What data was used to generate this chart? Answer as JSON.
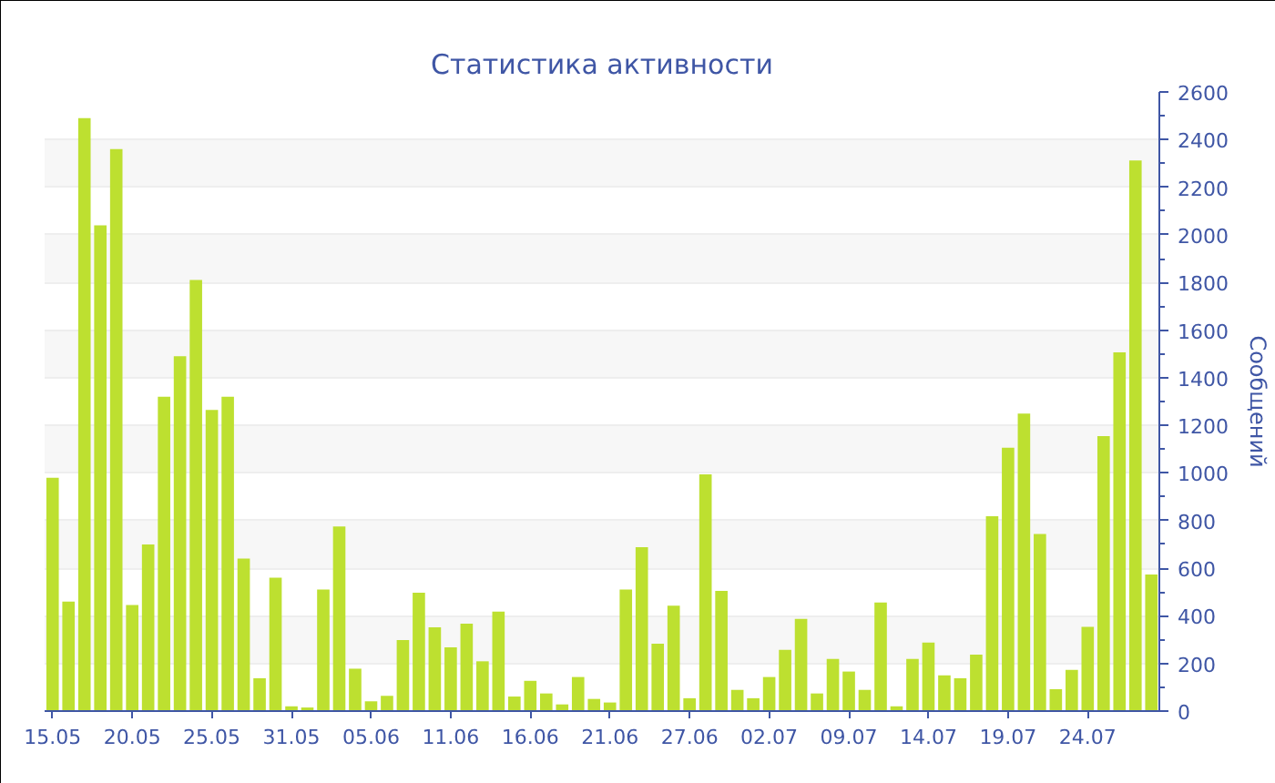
{
  "chart_data": {
    "type": "bar",
    "title": "Статистика активности",
    "y2label": "Сообщений",
    "categories": [
      "15.05",
      null,
      null,
      null,
      null,
      "20.05",
      null,
      null,
      null,
      null,
      "25.05",
      null,
      null,
      null,
      null,
      "31.05",
      null,
      null,
      null,
      null,
      "05.06",
      null,
      null,
      null,
      null,
      "11.06",
      null,
      null,
      null,
      null,
      "16.06",
      null,
      null,
      null,
      null,
      "21.06",
      null,
      null,
      null,
      null,
      "27.06",
      null,
      null,
      null,
      null,
      "02.07",
      null,
      null,
      null,
      null,
      "09.07",
      null,
      null,
      null,
      null,
      "14.07",
      null,
      null,
      null,
      null,
      "19.07",
      null,
      null,
      null,
      null,
      "24.07",
      null,
      null,
      null,
      null
    ],
    "series": [
      {
        "color": "#bde030",
        "axis": "y2",
        "values": [
          980,
          460,
          2490,
          2040,
          2360,
          445,
          700,
          1320,
          1490,
          1810,
          1265,
          1320,
          640,
          138,
          560,
          20,
          15,
          510,
          775,
          178,
          41,
          64,
          298,
          497,
          352,
          268,
          367,
          209,
          418,
          61,
          127,
          74,
          28,
          143,
          51,
          36,
          510,
          688,
          283,
          443,
          54,
          994,
          505,
          89,
          54,
          143,
          257,
          387,
          74,
          219,
          166,
          89,
          456,
          20,
          219,
          288,
          150,
          138,
          237,
          818,
          1106,
          1249,
          744,
          92,
          173,
          354,
          1155,
          1506,
          2312,
          574
        ]
      }
    ],
    "y2lim": [
      0,
      2600
    ],
    "y2ticks": [
      0,
      {
        "value": 100,
        "label": null
      },
      200,
      {
        "value": 300,
        "label": null
      },
      400,
      {
        "value": 500,
        "label": null
      },
      600,
      {
        "value": 700,
        "label": null
      },
      800,
      {
        "value": 900,
        "label": null
      },
      1000,
      {
        "value": 1100,
        "label": null
      },
      1200,
      {
        "value": 1300,
        "label": null
      },
      1400,
      {
        "value": 1500,
        "label": null
      },
      1600,
      {
        "value": 1700,
        "label": null
      },
      1800,
      {
        "value": 1900,
        "label": null
      },
      2000,
      {
        "value": 2100,
        "label": null
      },
      2200,
      {
        "value": 2300,
        "label": null
      },
      2400,
      {
        "value": 2500,
        "label": null
      },
      2600
    ],
    "grid": "y"
  }
}
